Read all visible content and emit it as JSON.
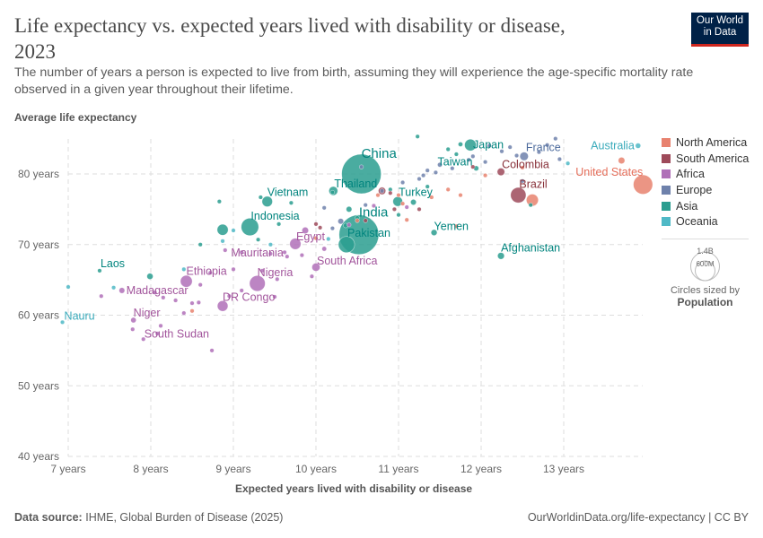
{
  "header": {
    "title": "Life expectancy vs. expected years lived with disability or disease, 2023",
    "subtitle": "The number of years a person is expected to live from birth, assuming they will experience the age-specific mortality rate observed in a given year throughout their lifetime.",
    "logo": "Our World in Data"
  },
  "footer": {
    "source_label": "Data source:",
    "source": "IHME, Global Burden of Disease (2025)",
    "link": "OurWorldinData.org/life-expectancy | CC BY"
  },
  "legend": {
    "size_labels": [
      "1.4B",
      "600M"
    ],
    "size_caption": "Circles sized by",
    "size_var": "Population"
  },
  "chart_data": {
    "type": "scatter",
    "title": "Life expectancy vs. expected years lived with disability or disease, 2023",
    "xlabel": "Expected years lived with disability or disease",
    "ylabel": "Average life expectancy",
    "xlim": [
      6.9,
      13.95
    ],
    "ylim": [
      40,
      85
    ],
    "xticks": [
      7,
      8,
      9,
      10,
      11,
      12,
      13
    ],
    "xtick_labels": [
      "7 years",
      "8 years",
      "9 years",
      "10 years",
      "11 years",
      "12 years",
      "13 years"
    ],
    "yticks": [
      40,
      50,
      60,
      70,
      80
    ],
    "ytick_labels": [
      "40 years",
      "50 years",
      "60 years",
      "70 years",
      "80 years"
    ],
    "grid": true,
    "legend_position": "right",
    "size_variable": "Population",
    "regions": [
      {
        "name": "North America",
        "color": "#e8826f",
        "label_color": "#e56e5a"
      },
      {
        "name": "South America",
        "color": "#9e4a5a",
        "label_color": "#883039"
      },
      {
        "name": "Africa",
        "color": "#b070b8",
        "label_color": "#a2559c"
      },
      {
        "name": "Europe",
        "color": "#6e81ab",
        "label_color": "#4c6a9c"
      },
      {
        "name": "Asia",
        "color": "#2a9d8f",
        "label_color": "#00847e"
      },
      {
        "name": "Oceania",
        "color": "#4fb9c6",
        "label_color": "#38aaba"
      }
    ],
    "labeled_points": [
      {
        "name": "China",
        "x": 10.55,
        "y": 80.0,
        "region": "Asia",
        "pop_m": 1420
      },
      {
        "name": "India",
        "x": 10.52,
        "y": 71.4,
        "region": "Asia",
        "pop_m": 1430
      },
      {
        "name": "Pakistan",
        "x": 10.37,
        "y": 70.0,
        "region": "Asia",
        "pop_m": 240
      },
      {
        "name": "Thailand",
        "x": 10.21,
        "y": 77.6,
        "region": "Asia",
        "pop_m": 72
      },
      {
        "name": "Vietnam",
        "x": 9.41,
        "y": 76.1,
        "region": "Asia",
        "pop_m": 99
      },
      {
        "name": "Indonesia",
        "x": 9.2,
        "y": 72.5,
        "region": "Asia",
        "pop_m": 278
      },
      {
        "name": "Egypt",
        "x": 9.75,
        "y": 70.1,
        "region": "Africa",
        "pop_m": 113
      },
      {
        "name": "Mauritania",
        "x": 9.65,
        "y": 68.3,
        "region": "Africa",
        "pop_m": 5
      },
      {
        "name": "South Africa",
        "x": 10.0,
        "y": 66.8,
        "region": "Africa",
        "pop_m": 61
      },
      {
        "name": "Nigeria",
        "x": 9.29,
        "y": 64.5,
        "region": "Africa",
        "pop_m": 224
      },
      {
        "name": "Ethiopia",
        "x": 8.43,
        "y": 64.8,
        "region": "Africa",
        "pop_m": 127
      },
      {
        "name": "DR Congo",
        "x": 8.87,
        "y": 61.3,
        "region": "Africa",
        "pop_m": 102
      },
      {
        "name": "Madagascar",
        "x": 7.65,
        "y": 63.5,
        "region": "Africa",
        "pop_m": 30
      },
      {
        "name": "Niger",
        "x": 7.79,
        "y": 59.3,
        "region": "Africa",
        "pop_m": 27
      },
      {
        "name": "South Sudan",
        "x": 7.91,
        "y": 56.6,
        "region": "Africa",
        "pop_m": 11
      },
      {
        "name": "Laos",
        "x": 7.38,
        "y": 66.3,
        "region": "Asia",
        "pop_m": 8
      },
      {
        "name": "Nauru",
        "x": 6.93,
        "y": 59.0,
        "region": "Oceania",
        "pop_m": 1
      },
      {
        "name": "Turkey",
        "x": 10.99,
        "y": 76.1,
        "region": "Asia",
        "pop_m": 85
      },
      {
        "name": "Taiwan",
        "x": 11.94,
        "y": 80.8,
        "region": "Asia",
        "pop_m": 24
      },
      {
        "name": "Japan",
        "x": 11.87,
        "y": 84.1,
        "region": "Asia",
        "pop_m": 124
      },
      {
        "name": "France",
        "x": 12.52,
        "y": 82.5,
        "region": "Europe",
        "pop_m": 66
      },
      {
        "name": "Colombia",
        "x": 12.24,
        "y": 80.3,
        "region": "South America",
        "pop_m": 52
      },
      {
        "name": "Brazil",
        "x": 12.45,
        "y": 77.0,
        "region": "South America",
        "pop_m": 216
      },
      {
        "name": "Afghanistan",
        "x": 12.24,
        "y": 68.4,
        "region": "Asia",
        "pop_m": 42
      },
      {
        "name": "Yemen",
        "x": 11.43,
        "y": 71.7,
        "region": "Asia",
        "pop_m": 34
      },
      {
        "name": "United States",
        "x": 13.96,
        "y": 78.5,
        "region": "North America",
        "pop_m": 340
      },
      {
        "name": "Australia",
        "x": 13.9,
        "y": 84.0,
        "region": "Oceania",
        "pop_m": 26
      }
    ],
    "other_points": [
      [
        8.83,
        76.1,
        "Asia",
        5
      ],
      [
        8.87,
        72.1,
        "Asia",
        110
      ],
      [
        8.6,
        70,
        "Asia",
        5
      ],
      [
        7.99,
        65.5,
        "Asia",
        35
      ],
      [
        9.33,
        76.7,
        "Asia",
        10
      ],
      [
        9.7,
        75.9,
        "Asia",
        5
      ],
      [
        10.2,
        77.4,
        "Asia",
        8
      ],
      [
        10.4,
        75,
        "Asia",
        30
      ],
      [
        10.5,
        73.8,
        "Asia",
        10
      ],
      [
        11.18,
        76.0,
        "Asia",
        30
      ],
      [
        11.0,
        74.2,
        "Asia",
        15
      ],
      [
        11.35,
        78.2,
        "Asia",
        10
      ],
      [
        11.6,
        83.5,
        "Asia",
        8
      ],
      [
        11.75,
        84.2,
        "Asia",
        20
      ],
      [
        10.9,
        77.8,
        "Asia",
        5
      ],
      [
        12.6,
        75.6,
        "Asia",
        5
      ],
      [
        11.7,
        82.8,
        "Asia",
        5
      ],
      [
        10.36,
        72.7,
        "Asia",
        20
      ],
      [
        9.55,
        72.9,
        "Asia",
        5
      ],
      [
        9.3,
        70.7,
        "Asia",
        5
      ],
      [
        11.23,
        85.3,
        "Asia",
        1
      ],
      [
        8.9,
        69.2,
        "Africa",
        10
      ],
      [
        9.1,
        68.9,
        "Africa",
        5
      ],
      [
        9.45,
        68.7,
        "Africa",
        10
      ],
      [
        9.62,
        68.9,
        "Africa",
        10
      ],
      [
        9.83,
        68.5,
        "Africa",
        5
      ],
      [
        10.1,
        69.4,
        "Africa",
        20
      ],
      [
        8.72,
        66,
        "Africa",
        5
      ],
      [
        9.0,
        66.5,
        "Africa",
        10
      ],
      [
        9.35,
        66.3,
        "Africa",
        5
      ],
      [
        9.53,
        65.1,
        "Africa",
        5
      ],
      [
        9.95,
        65.5,
        "Africa",
        5
      ],
      [
        8.6,
        64.3,
        "Africa",
        10
      ],
      [
        8.95,
        62.7,
        "Africa",
        10
      ],
      [
        9.1,
        63.5,
        "Africa",
        5
      ],
      [
        9.5,
        62.6,
        "Africa",
        10
      ],
      [
        8.5,
        61.7,
        "Africa",
        10
      ],
      [
        8.3,
        62.1,
        "Africa",
        15
      ],
      [
        8.15,
        62.5,
        "Africa",
        5
      ],
      [
        8.4,
        60.3,
        "Africa",
        5
      ],
      [
        8.58,
        61.8,
        "Africa",
        5
      ],
      [
        8.74,
        55,
        "Africa",
        2
      ],
      [
        7.78,
        58,
        "Africa",
        5
      ],
      [
        8.08,
        57.4,
        "Africa",
        5
      ],
      [
        8.12,
        58.5,
        "Africa",
        5
      ],
      [
        8.05,
        63.2,
        "Africa",
        5
      ],
      [
        7.4,
        62.7,
        "Africa",
        10
      ],
      [
        10.4,
        72.8,
        "Africa",
        5
      ],
      [
        10.7,
        75.5,
        "Africa",
        5
      ],
      [
        11.1,
        75.3,
        "Africa",
        5
      ],
      [
        9.87,
        72.0,
        "Africa",
        40
      ],
      [
        10.6,
        75.6,
        "Europe",
        5
      ],
      [
        10.1,
        75.2,
        "Europe",
        5
      ],
      [
        10.3,
        73.3,
        "Europe",
        30
      ],
      [
        10.2,
        72.3,
        "Europe",
        10
      ],
      [
        10.8,
        77.6,
        "Europe",
        5
      ],
      [
        11.05,
        78.8,
        "Europe",
        5
      ],
      [
        11.35,
        80.5,
        "Europe",
        5
      ],
      [
        11.45,
        80.2,
        "Europe",
        10
      ],
      [
        11.65,
        80.8,
        "Europe",
        10
      ],
      [
        11.3,
        79.8,
        "Europe",
        5
      ],
      [
        11.85,
        82.0,
        "Europe",
        10
      ],
      [
        12.1,
        84.0,
        "Europe",
        5
      ],
      [
        12.35,
        83.8,
        "Europe",
        5
      ],
      [
        12.7,
        83.1,
        "Europe",
        10
      ],
      [
        12.9,
        85.0,
        "Europe",
        5
      ],
      [
        12.95,
        82.1,
        "Europe",
        5
      ],
      [
        11.9,
        82.5,
        "Europe",
        5
      ],
      [
        12.25,
        83.2,
        "Europe",
        5
      ],
      [
        11.5,
        81.3,
        "Europe",
        20
      ],
      [
        12.05,
        81.7,
        "Europe",
        5
      ],
      [
        12.43,
        82.6,
        "Europe",
        5
      ],
      [
        11.25,
        79.3,
        "Europe",
        10
      ],
      [
        10.55,
        81.0,
        "Europe",
        5
      ],
      [
        12.8,
        84.1,
        "Europe",
        5
      ],
      [
        12.5,
        79.0,
        "Europe",
        5
      ],
      [
        10.5,
        73.4,
        "North America",
        5
      ],
      [
        11.1,
        73.5,
        "North America",
        5
      ],
      [
        11.4,
        76.7,
        "North America",
        5
      ],
      [
        11.0,
        77.0,
        "North America",
        5
      ],
      [
        11.6,
        77.8,
        "North America",
        5
      ],
      [
        11.75,
        77,
        "North America",
        5
      ],
      [
        12.5,
        80.9,
        "North America",
        5
      ],
      [
        13.7,
        81.9,
        "North America",
        40
      ],
      [
        12.62,
        76.3,
        "North America",
        130
      ],
      [
        12.05,
        79.8,
        "North America",
        5
      ],
      [
        11.7,
        72.6,
        "North America",
        5
      ],
      [
        8.5,
        60.6,
        "North America",
        3
      ],
      [
        10.0,
        70.9,
        "North America",
        5
      ],
      [
        11.05,
        75.8,
        "North America",
        5
      ],
      [
        10.75,
        77,
        "North America",
        5
      ],
      [
        10.8,
        77.6,
        "South America",
        50
      ],
      [
        10.0,
        72.9,
        "South America",
        5
      ],
      [
        10.95,
        75.0,
        "South America",
        5
      ],
      [
        11.25,
        75,
        "South America",
        5
      ],
      [
        10.05,
        72.4,
        "South America",
        5
      ],
      [
        10.6,
        73.4,
        "South America",
        5
      ],
      [
        10.9,
        77.3,
        "South America",
        5
      ],
      [
        11.9,
        81,
        "South America",
        5
      ],
      [
        7.55,
        63.9,
        "Oceania",
        1
      ],
      [
        7.0,
        64,
        "Oceania",
        1
      ],
      [
        8.4,
        66.5,
        "Oceania",
        1
      ],
      [
        8.87,
        70.5,
        "Oceania",
        5
      ],
      [
        9.0,
        72,
        "Oceania",
        1
      ],
      [
        9.45,
        70,
        "Oceania",
        1
      ],
      [
        10.15,
        70.8,
        "Oceania",
        1
      ],
      [
        13.05,
        81.5,
        "Oceania",
        1
      ]
    ]
  }
}
